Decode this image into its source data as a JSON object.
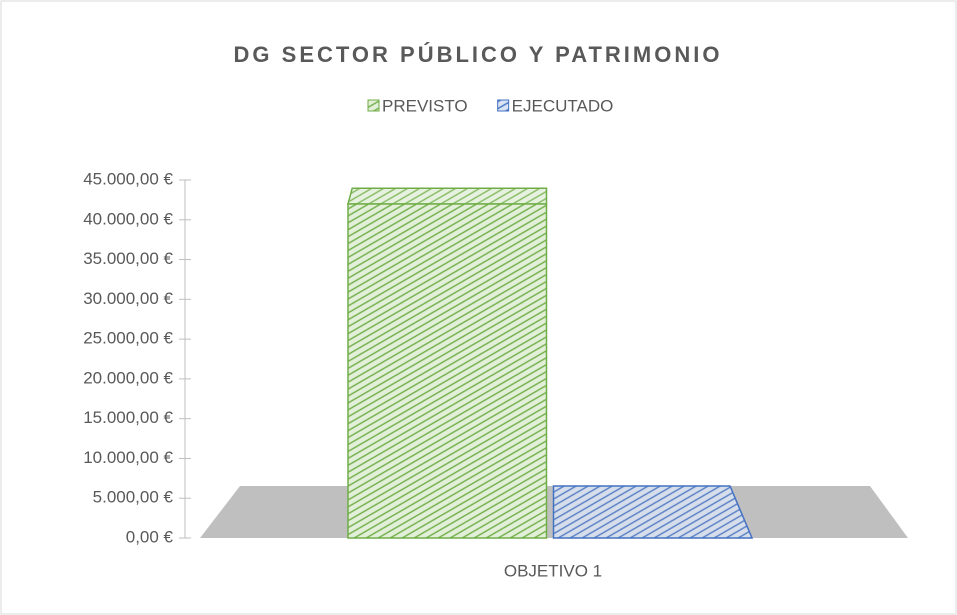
{
  "chart_data": {
    "type": "bar3d",
    "title": "DG SECTOR PÚBLICO Y PATRIMONIO",
    "categories": [
      "OBJETIVO 1"
    ],
    "series": [
      {
        "name": "PREVISTO",
        "color": "#70ad47",
        "values": [
          42000
        ]
      },
      {
        "name": "EJECUTADO",
        "color": "#4472c4",
        "values": [
          0
        ]
      }
    ],
    "ylim": [
      0,
      45000
    ],
    "yticks": [
      {
        "value": 0,
        "label": "0,00 €"
      },
      {
        "value": 5000,
        "label": "5.000,00 €"
      },
      {
        "value": 10000,
        "label": "10.000,00 €"
      },
      {
        "value": 15000,
        "label": "15.000,00 €"
      },
      {
        "value": 20000,
        "label": "20.000,00 €"
      },
      {
        "value": 25000,
        "label": "25.000,00 €"
      },
      {
        "value": 30000,
        "label": "30.000,00 €"
      },
      {
        "value": 35000,
        "label": "35.000,00 €"
      },
      {
        "value": 40000,
        "label": "40.000,00 €"
      },
      {
        "value": 45000,
        "label": "45.000,00 €"
      }
    ],
    "legend": "top"
  }
}
